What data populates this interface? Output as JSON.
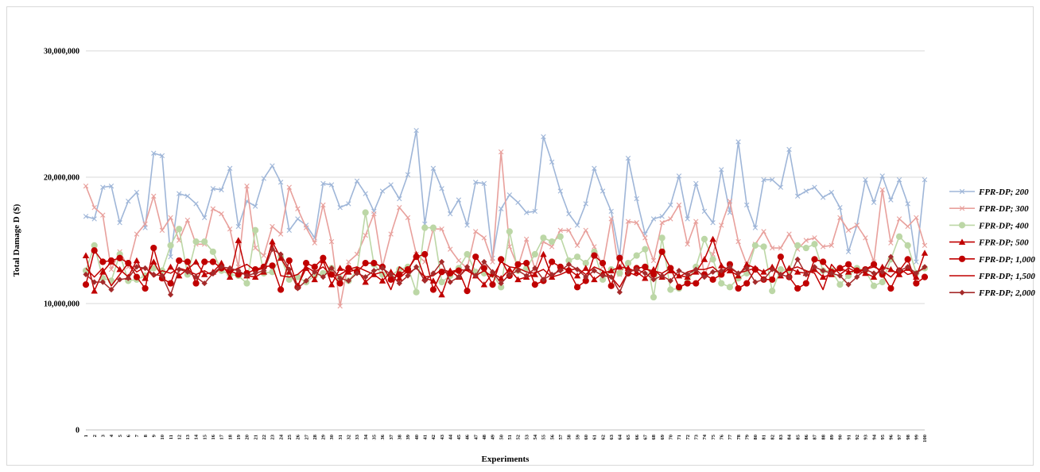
{
  "chart_data": {
    "type": "line",
    "title": "",
    "xlabel": "Experiments",
    "ylabel": "Total Damage D ($)",
    "ylim": [
      0,
      30000000
    ],
    "yticks": [
      "0",
      "10,000,000",
      "20,000,000",
      "30,000,000"
    ],
    "ytick_values": [
      0,
      10000000,
      20000000,
      30000000
    ],
    "x": [
      1,
      2,
      3,
      4,
      5,
      6,
      7,
      8,
      9,
      10,
      11,
      12,
      13,
      14,
      15,
      16,
      17,
      18,
      19,
      20,
      21,
      22,
      23,
      24,
      25,
      26,
      27,
      28,
      29,
      30,
      31,
      32,
      33,
      34,
      35,
      36,
      37,
      38,
      39,
      40,
      41,
      42,
      43,
      44,
      45,
      46,
      47,
      48,
      49,
      50,
      51,
      52,
      53,
      54,
      55,
      56,
      57,
      58,
      59,
      60,
      61,
      62,
      63,
      64,
      65,
      66,
      67,
      68,
      69,
      70,
      71,
      72,
      73,
      74,
      75,
      76,
      77,
      78,
      79,
      80,
      81,
      82,
      83,
      84,
      85,
      86,
      87,
      88,
      89,
      90,
      91,
      92,
      93,
      94,
      95,
      96,
      97,
      98,
      99,
      100
    ],
    "grid": true,
    "legend_position": "right",
    "series": [
      {
        "name": "FPR-DP; 200",
        "color": "#9fb6d8",
        "marker": "x",
        "values": [
          16900000,
          16700000,
          19200000,
          19300000,
          16400000,
          18100000,
          18800000,
          16000000,
          21900000,
          21700000,
          13700000,
          18700000,
          18500000,
          17900000,
          16800000,
          19100000,
          19000000,
          20700000,
          16100000,
          18100000,
          17700000,
          19900000,
          20900000,
          19600000,
          15800000,
          16700000,
          16200000,
          15200000,
          19500000,
          19400000,
          17600000,
          17900000,
          19700000,
          18700000,
          17300000,
          18900000,
          19400000,
          18300000,
          20200000,
          23700000,
          16300000,
          20700000,
          19100000,
          17100000,
          18200000,
          16200000,
          19600000,
          19500000,
          13600000,
          17500000,
          18600000,
          18000000,
          17200000,
          17300000,
          23200000,
          21200000,
          18900000,
          17100000,
          16200000,
          17900000,
          20700000,
          18900000,
          17300000,
          13700000,
          21500000,
          18300000,
          15500000,
          16700000,
          16900000,
          17800000,
          20100000,
          16700000,
          19500000,
          17300000,
          16400000,
          20600000,
          17200000,
          22800000,
          17800000,
          16000000,
          19800000,
          19800000,
          19200000,
          22200000,
          18500000,
          18900000,
          19200000,
          18400000,
          18800000,
          17600000,
          14100000,
          16200000,
          19800000,
          18000000,
          20100000,
          18200000,
          19800000,
          17900000,
          13300000,
          19800000
        ]
      },
      {
        "name": "FPR-DP; 300",
        "color": "#e8a09c",
        "marker": "x",
        "values": [
          19300000,
          17600000,
          17000000,
          12700000,
          14100000,
          12900000,
          15500000,
          16300000,
          18500000,
          15800000,
          16800000,
          15000000,
          16600000,
          14700000,
          14700000,
          17500000,
          17100000,
          15900000,
          12900000,
          19300000,
          14400000,
          13800000,
          16100000,
          15500000,
          19200000,
          17500000,
          16000000,
          14800000,
          17800000,
          14900000,
          9800000,
          13300000,
          13900000,
          15400000,
          17100000,
          12900000,
          15500000,
          17600000,
          16800000,
          13900000,
          13300000,
          15900000,
          15900000,
          14300000,
          13400000,
          12800000,
          15700000,
          15200000,
          13300000,
          22000000,
          14500000,
          12900000,
          15100000,
          12700000,
          14900000,
          14500000,
          15800000,
          15800000,
          14600000,
          15800000,
          14500000,
          12900000,
          16700000,
          12300000,
          16500000,
          16400000,
          15200000,
          13400000,
          16400000,
          16700000,
          17800000,
          14700000,
          16500000,
          12200000,
          13900000,
          16200000,
          18100000,
          14900000,
          13100000,
          14700000,
          15700000,
          14400000,
          14400000,
          15500000,
          14300000,
          15000000,
          15200000,
          14500000,
          14600000,
          16800000,
          15800000,
          16200000,
          15200000,
          13300000,
          19000000,
          14800000,
          16700000,
          16100000,
          16800000,
          14600000
        ]
      },
      {
        "name": "FPR-DP; 400",
        "color": "#bcd7a6",
        "marker": "circle",
        "values": [
          12600000,
          14600000,
          12000000,
          11800000,
          13900000,
          11800000,
          11900000,
          12200000,
          12800000,
          12600000,
          14600000,
          15900000,
          12300000,
          14900000,
          14900000,
          14100000,
          12600000,
          12300000,
          12200000,
          11600000,
          15800000,
          12400000,
          12500000,
          13700000,
          11900000,
          12100000,
          11700000,
          12200000,
          12400000,
          12800000,
          12000000,
          11800000,
          12600000,
          17200000,
          13100000,
          12300000,
          12200000,
          12700000,
          12900000,
          10900000,
          16000000,
          16000000,
          11700000,
          12200000,
          12800000,
          13900000,
          12500000,
          12400000,
          12300000,
          11300000,
          15700000,
          12600000,
          12800000,
          13900000,
          15200000,
          14900000,
          15300000,
          13400000,
          13700000,
          13200000,
          14100000,
          11900000,
          12700000,
          12400000,
          13200000,
          13800000,
          14300000,
          10500000,
          15200000,
          11100000,
          11200000,
          11700000,
          12900000,
          15100000,
          13500000,
          11600000,
          11300000,
          12000000,
          12400000,
          14600000,
          14500000,
          11000000,
          12700000,
          12600000,
          14600000,
          14400000,
          14700000,
          12600000,
          12600000,
          11500000,
          12200000,
          12800000,
          12600000,
          11400000,
          11700000,
          13500000,
          15300000,
          14600000,
          12400000,
          12800000
        ]
      },
      {
        "name": "FPR-DP; 500",
        "color": "#c00000",
        "marker": "triangle",
        "values": [
          13800000,
          11000000,
          12500000,
          13300000,
          12700000,
          12100000,
          13400000,
          12000000,
          13300000,
          12100000,
          12900000,
          12200000,
          12700000,
          13300000,
          12300000,
          12500000,
          13200000,
          12100000,
          15000000,
          12200000,
          12100000,
          12500000,
          14900000,
          13600000,
          12500000,
          11400000,
          12800000,
          11900000,
          13400000,
          11500000,
          12800000,
          12500000,
          12700000,
          11700000,
          12300000,
          11800000,
          12500000,
          12000000,
          12600000,
          13900000,
          12000000,
          11800000,
          10700000,
          12600000,
          12100000,
          12800000,
          12200000,
          11500000,
          12400000,
          12000000,
          12700000,
          11900000,
          12100000,
          12300000,
          13900000,
          12100000,
          12800000,
          12700000,
          12200000,
          12800000,
          11900000,
          12400000,
          12600000,
          12900000,
          12800000,
          12500000,
          12000000,
          12700000,
          12100000,
          12600000,
          12200000,
          12100000,
          12500000,
          13500000,
          15100000,
          13000000,
          12600000,
          12200000,
          13100000,
          12800000,
          12500000,
          12900000,
          12200000,
          12800000,
          12500000,
          12400000,
          12700000,
          12100000,
          12300000,
          12800000,
          12500000,
          12600000,
          12400000,
          12100000,
          12900000,
          12700000,
          12300000,
          12800000,
          12100000,
          14000000
        ]
      },
      {
        "name": "FPR-DP; 1,000",
        "color": "#c00000",
        "marker": "circle",
        "values": [
          11500000,
          14200000,
          13300000,
          13400000,
          13600000,
          13200000,
          12100000,
          11200000,
          14400000,
          12000000,
          11600000,
          13400000,
          13300000,
          11600000,
          13300000,
          13300000,
          12800000,
          12600000,
          12300000,
          12400000,
          12700000,
          12900000,
          13000000,
          11100000,
          13400000,
          11300000,
          13200000,
          12900000,
          13600000,
          12300000,
          11600000,
          12800000,
          12500000,
          13200000,
          13200000,
          12900000,
          11900000,
          12300000,
          12700000,
          13700000,
          13900000,
          11100000,
          12500000,
          12400000,
          12600000,
          11000000,
          13700000,
          12800000,
          11500000,
          13500000,
          12200000,
          13100000,
          13200000,
          11500000,
          11800000,
          13300000,
          12900000,
          12600000,
          11300000,
          11800000,
          13800000,
          13200000,
          11400000,
          13600000,
          12400000,
          12800000,
          12900000,
          12300000,
          14100000,
          12800000,
          11300000,
          11600000,
          11600000,
          12300000,
          11900000,
          12300000,
          13100000,
          11200000,
          11600000,
          12700000,
          11900000,
          11900000,
          13700000,
          12100000,
          11200000,
          11600000,
          13500000,
          13300000,
          12500000,
          12800000,
          13100000,
          12600000,
          12700000,
          13100000,
          12300000,
          11200000,
          12600000,
          13500000,
          11600000,
          12100000
        ]
      },
      {
        "name": "FPR-DP; 1,500",
        "color": "#c00000",
        "marker": "none",
        "values": [
          12800000,
          12100000,
          12800000,
          11400000,
          12300000,
          13200000,
          12500000,
          12900000,
          12100000,
          12600000,
          12400000,
          12800000,
          12600000,
          12300000,
          12600000,
          12200000,
          12900000,
          12500000,
          12800000,
          13100000,
          12600000,
          12800000,
          14700000,
          12200000,
          12100000,
          12300000,
          12900000,
          12500000,
          12900000,
          12200000,
          12300000,
          12700000,
          12900000,
          12600000,
          12300000,
          12500000,
          11100000,
          12900000,
          12400000,
          12800000,
          12100000,
          12200000,
          12700000,
          12500000,
          12700000,
          12600000,
          12200000,
          12600000,
          12100000,
          13300000,
          12900000,
          12800000,
          12500000,
          12400000,
          12700000,
          12100000,
          12300000,
          12600000,
          12800000,
          12300000,
          12900000,
          12600000,
          12100000,
          11300000,
          12500000,
          12200000,
          12700000,
          12600000,
          12400000,
          12800000,
          12100000,
          12500000,
          12700000,
          12700000,
          12900000,
          12300000,
          12800000,
          12400000,
          12600000,
          12800000,
          12500000,
          12900000,
          12300000,
          12700000,
          12900000,
          12600000,
          12400000,
          11100000,
          13100000,
          12300000,
          12800000,
          12500000,
          12700000,
          12900000,
          12600000,
          12100000,
          12800000,
          12300000,
          12500000,
          12800000
        ]
      },
      {
        "name": "FPR-DP; 2,000",
        "color": "#a52a2a",
        "marker": "diamond",
        "values": [
          12300000,
          11700000,
          11700000,
          11100000,
          11900000,
          12000000,
          12900000,
          12800000,
          12300000,
          12200000,
          10700000,
          12700000,
          12500000,
          12100000,
          11600000,
          12400000,
          12900000,
          12800000,
          12600000,
          12200000,
          12400000,
          12600000,
          14300000,
          13900000,
          12700000,
          11200000,
          11800000,
          12500000,
          12100000,
          12800000,
          12000000,
          11800000,
          12400000,
          12100000,
          12600000,
          12800000,
          12300000,
          11600000,
          12200000,
          12900000,
          11800000,
          12400000,
          13300000,
          11700000,
          12100000,
          12900000,
          12200000,
          13300000,
          12500000,
          11600000,
          12300000,
          12600000,
          12200000,
          12800000,
          11900000,
          12300000,
          12600000,
          13100000,
          12700000,
          12100000,
          12600000,
          12200000,
          12100000,
          10900000,
          12500000,
          12700000,
          12400000,
          11900000,
          12200000,
          11800000,
          12600000,
          12300000,
          12700000,
          12100000,
          12500000,
          12600000,
          12900000,
          12400000,
          12800000,
          11700000,
          11900000,
          12700000,
          12300000,
          12100000,
          13500000,
          12300000,
          12900000,
          12600000,
          12400000,
          12200000,
          11500000,
          12100000,
          12700000,
          12400000,
          12500000,
          13700000,
          12600000,
          12900000,
          12400000,
          12900000
        ]
      }
    ]
  }
}
